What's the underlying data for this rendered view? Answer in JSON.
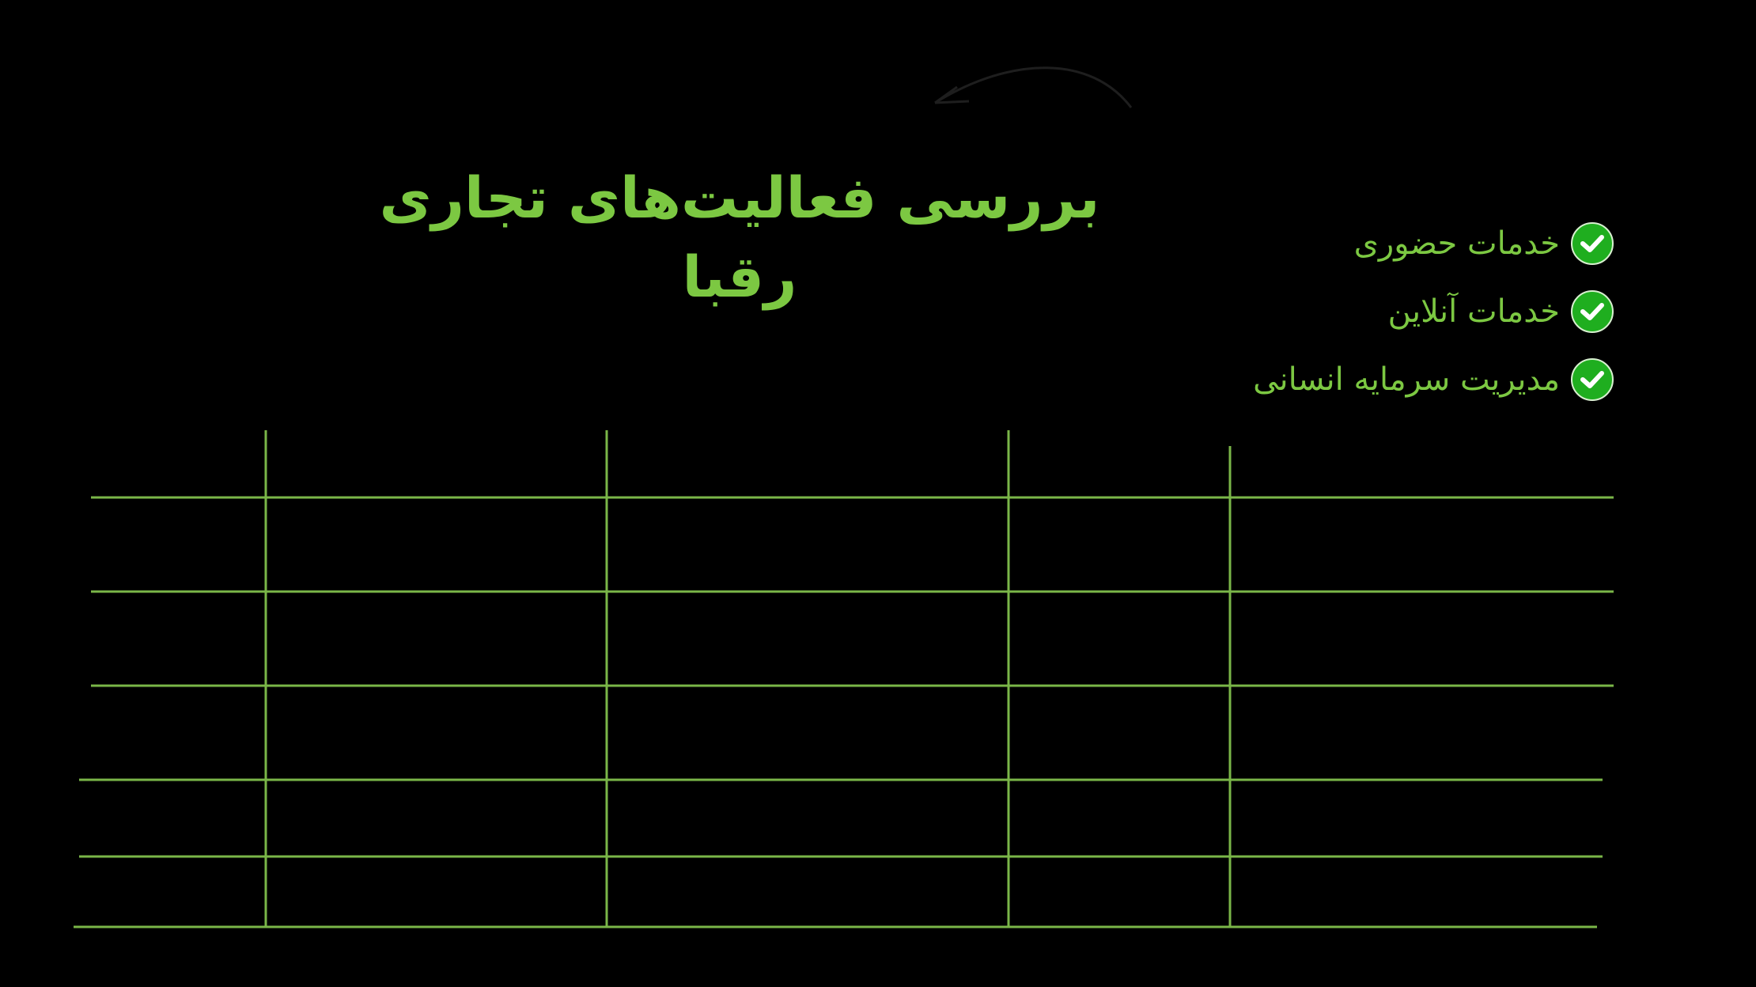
{
  "title": "بررسی فعالیت‌های تجاری رقبا",
  "checklist": [
    {
      "label": "خدمات حضوری",
      "icon": "check-circle-icon"
    },
    {
      "label": "خدمات آنلاین",
      "icon": "check-circle-icon"
    },
    {
      "label": "مدیریت سرمایه انسانی",
      "icon": "check-circle-icon"
    }
  ],
  "colors": {
    "accent": "#7cc842",
    "table_lines": "#7ab648",
    "check": "#1fae1f",
    "background": "#000000"
  }
}
